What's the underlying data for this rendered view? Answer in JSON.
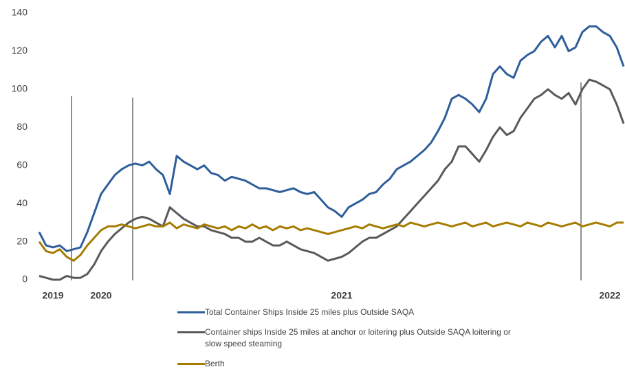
{
  "chart_data": {
    "type": "line",
    "categories": [
      null,
      null,
      "2019",
      null,
      null,
      null,
      null,
      null,
      null,
      "2020",
      null,
      null,
      null,
      null,
      null,
      null,
      null,
      null,
      null,
      null,
      null,
      null,
      null,
      null,
      null,
      null,
      null,
      null,
      null,
      null,
      null,
      null,
      null,
      null,
      null,
      null,
      null,
      null,
      null,
      null,
      null,
      null,
      null,
      null,
      "2021",
      null,
      null,
      null,
      null,
      null,
      null,
      null,
      null,
      null,
      null,
      null,
      null,
      null,
      null,
      null,
      null,
      null,
      null,
      null,
      null,
      null,
      null,
      null,
      null,
      null,
      null,
      null,
      null,
      null,
      null,
      null,
      null,
      null,
      null,
      null,
      null,
      null,
      null,
      "2022",
      null,
      null
    ],
    "series": [
      {
        "name": "Total Container Ships Inside 25 miles plus Outside SAQA",
        "color": "#2e5e9a",
        "values": [
          25,
          18,
          17,
          18,
          15,
          16,
          17,
          25,
          35,
          45,
          50,
          55,
          58,
          60,
          61,
          60,
          62,
          58,
          55,
          45,
          65,
          62,
          60,
          58,
          60,
          56,
          55,
          52,
          54,
          53,
          52,
          50,
          48,
          48,
          47,
          46,
          47,
          48,
          46,
          45,
          46,
          42,
          38,
          36,
          33,
          38,
          40,
          42,
          45,
          46,
          50,
          53,
          58,
          60,
          62,
          65,
          68,
          72,
          78,
          85,
          95,
          97,
          95,
          92,
          88,
          95,
          108,
          112,
          108,
          106,
          115,
          118,
          120,
          125,
          128,
          122,
          128,
          120,
          122,
          130,
          133,
          133,
          130,
          128,
          122,
          112
        ]
      },
      {
        "name": "Container ships Inside 25 miles at anchor or loitering plus Outside SAQA loitering or slow speed steaming",
        "color": "#595959",
        "values": [
          2,
          1,
          0,
          0,
          2,
          1,
          1,
          3,
          8,
          15,
          20,
          24,
          27,
          30,
          32,
          33,
          32,
          30,
          28,
          38,
          35,
          32,
          30,
          28,
          28,
          26,
          25,
          24,
          22,
          22,
          20,
          20,
          22,
          20,
          18,
          18,
          20,
          18,
          16,
          15,
          14,
          12,
          10,
          11,
          12,
          14,
          17,
          20,
          22,
          22,
          24,
          26,
          28,
          32,
          36,
          40,
          44,
          48,
          52,
          58,
          62,
          70,
          70,
          66,
          62,
          68,
          75,
          80,
          76,
          78,
          85,
          90,
          95,
          97,
          100,
          97,
          95,
          98,
          92,
          100,
          105,
          104,
          102,
          100,
          92,
          82
        ]
      },
      {
        "name": "Berth",
        "color": "#a67c00",
        "values": [
          20,
          15,
          14,
          16,
          12,
          10,
          13,
          18,
          22,
          26,
          28,
          28,
          29,
          28,
          27,
          28,
          29,
          28,
          28,
          30,
          27,
          29,
          28,
          27,
          29,
          28,
          27,
          28,
          26,
          28,
          27,
          29,
          27,
          28,
          26,
          28,
          27,
          28,
          26,
          27,
          26,
          25,
          24,
          25,
          26,
          27,
          28,
          27,
          29,
          28,
          27,
          28,
          29,
          28,
          30,
          29,
          28,
          29,
          30,
          29,
          28,
          29,
          30,
          28,
          29,
          30,
          28,
          29,
          30,
          29,
          28,
          30,
          29,
          28,
          30,
          29,
          28,
          29,
          30,
          28,
          29,
          30,
          29,
          28,
          30,
          30
        ]
      }
    ],
    "ylim": [
      0,
      140
    ],
    "yticks": [
      0,
      20,
      40,
      60,
      80,
      100,
      120,
      140
    ]
  }
}
